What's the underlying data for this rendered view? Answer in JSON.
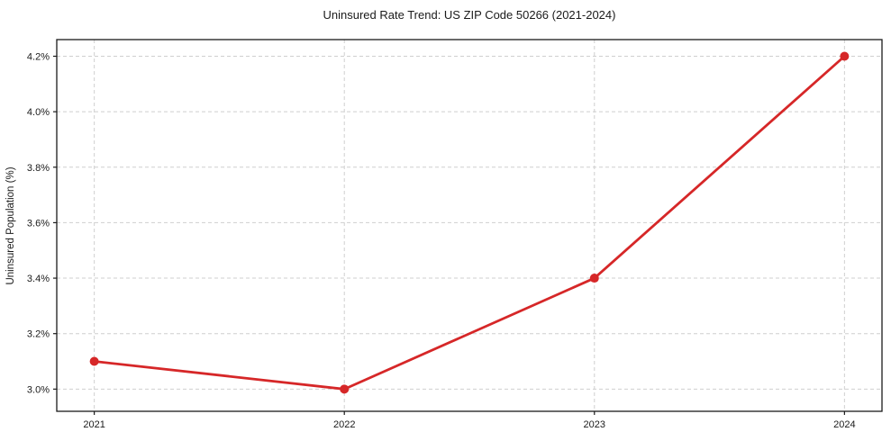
{
  "chart_data": {
    "type": "line",
    "title": "Uninsured Rate Trend: US ZIP Code 50266 (2021-2024)",
    "xlabel": "",
    "ylabel": "Uninsured Population (%)",
    "x": [
      2021,
      2022,
      2023,
      2024
    ],
    "x_tick_labels": [
      "2021",
      "2022",
      "2023",
      "2024"
    ],
    "series": [
      {
        "name": "Uninsured Population (%)",
        "values": [
          3.1,
          3.0,
          3.4,
          4.2
        ]
      }
    ],
    "y_ticks": [
      3.0,
      3.2,
      3.4,
      3.6,
      3.8,
      4.0,
      4.2
    ],
    "y_tick_labels": [
      "3.0%",
      "3.2%",
      "3.4%",
      "3.6%",
      "3.8%",
      "4.0%",
      "4.2%"
    ],
    "xlim": [
      2020.85,
      2024.15
    ],
    "ylim": [
      2.92,
      4.26
    ],
    "grid": true,
    "grid_style": "dashed",
    "legend": "none",
    "colors": {
      "line": "#d62728",
      "marker": "#d62728",
      "grid": "#cfcfcf",
      "spine": "#1a1a1a",
      "background": "#ffffff"
    }
  }
}
